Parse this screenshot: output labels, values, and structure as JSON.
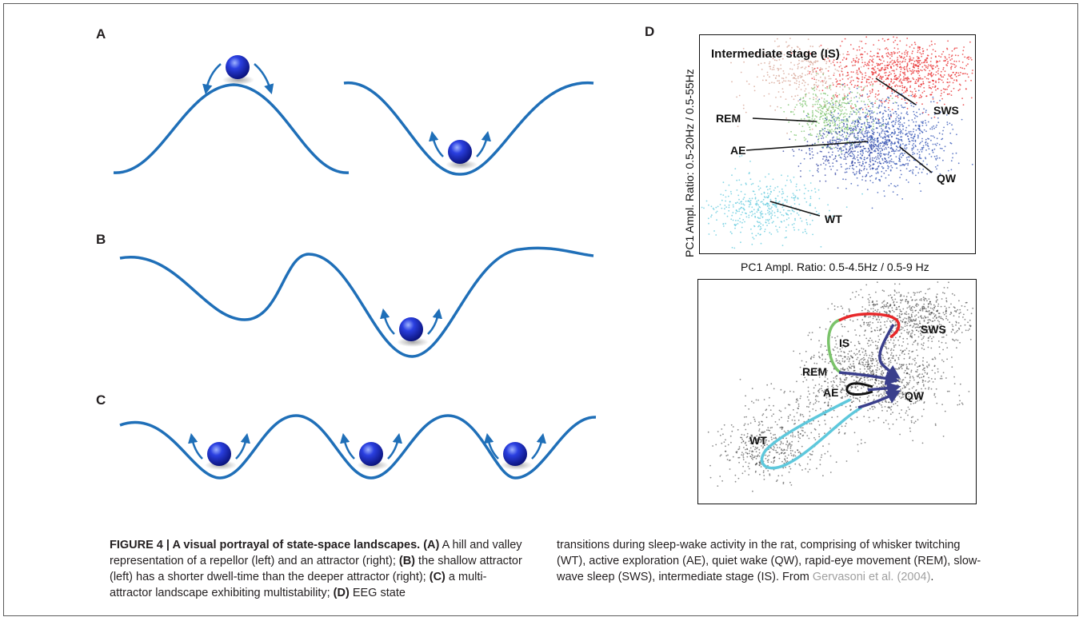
{
  "panels": {
    "a": "A",
    "b": "B",
    "c": "C",
    "d": "D"
  },
  "scatter": {
    "ylabel": "PC1 Ampl. Ratio: 0.5-20Hz / 0.5-55Hz",
    "xlabel": "PC1 Ampl. Ratio: 0.5-4.5Hz / 0.5-9 Hz",
    "labels": {
      "is": "Intermediate stage (IS)",
      "rem": "REM",
      "sws": "SWS",
      "ae": "AE",
      "qw": "QW",
      "wt": "WT"
    },
    "colors": {
      "is": "#d4a090",
      "rem": "#7ac36a",
      "sws": "#e8282a",
      "ae": "#2d3fa0",
      "qw": "#2d50b4",
      "wt": "#5ec8dc"
    }
  },
  "trajectory": {
    "labels": {
      "is": "IS",
      "sws": "SWS",
      "rem": "REM",
      "ae": "AE",
      "qw": "QW",
      "wt": "WT"
    }
  },
  "caption": {
    "figure_label": "FIGURE 4 | A visual portrayal of state-space landscapes.",
    "a_tag": "(A)",
    "a_text": " A hill and valley representation of a repellor (left) and an attractor (right); ",
    "b_tag": "(B)",
    "b_text": " the shallow attractor (left) has a shorter dwell-time than the deeper attractor (right); ",
    "c_tag": "(C)",
    "c_text": " a multi-attractor landscape exhibiting multistability; ",
    "d_tag": "(D)",
    "d_text": " EEG state",
    "right_text": "transitions during sleep-wake activity in the rat, comprising of whisker twitching (WT), active exploration (AE), quiet wake (QW), rapid-eye movement (REM), slow-wave sleep (SWS), intermediate stage (IS). From ",
    "citation": "Gervasoni et al. (2004)",
    "end": "."
  }
}
